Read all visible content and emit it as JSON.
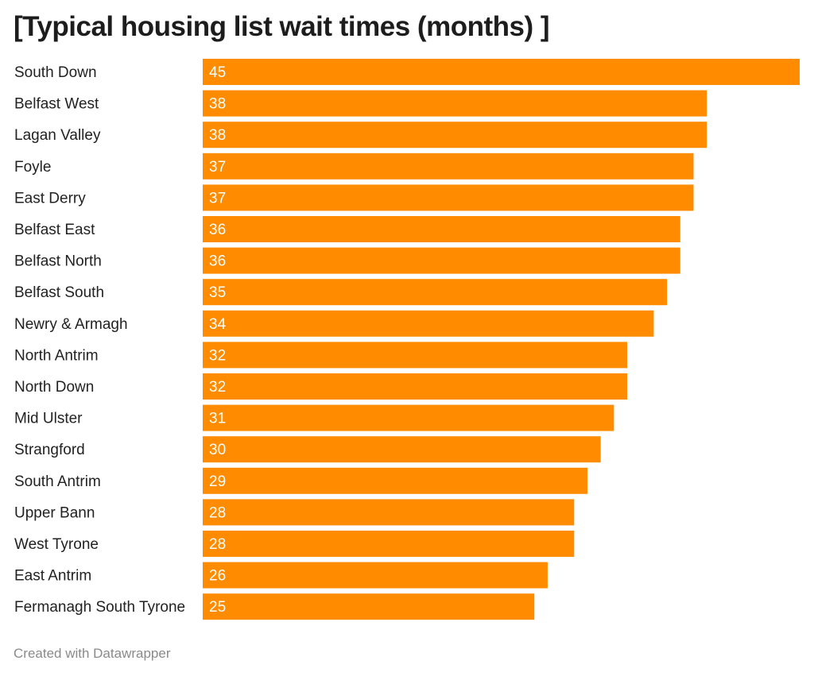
{
  "chart_data": {
    "type": "bar",
    "orientation": "horizontal",
    "title": "[Typical housing list wait times (months) ]",
    "categories": [
      "South Down",
      "Belfast West",
      "Lagan Valley",
      "Foyle",
      "East Derry",
      "Belfast East",
      "Belfast North",
      "Belfast South",
      "Newry & Armagh",
      "North Antrim",
      "North Down",
      "Mid Ulster",
      "Strangford",
      "South Antrim",
      "Upper Bann",
      "West Tyrone",
      "East Antrim",
      "Fermanagh South Tyrone"
    ],
    "values": [
      45,
      38,
      38,
      37,
      37,
      36,
      36,
      35,
      34,
      32,
      32,
      31,
      30,
      29,
      28,
      28,
      26,
      25
    ],
    "xlim": [
      0,
      45
    ],
    "grid": false,
    "bar_color": "#ff8c00",
    "value_label_color": "#ffffff"
  },
  "footer": {
    "credit": "Created with Datawrapper"
  }
}
